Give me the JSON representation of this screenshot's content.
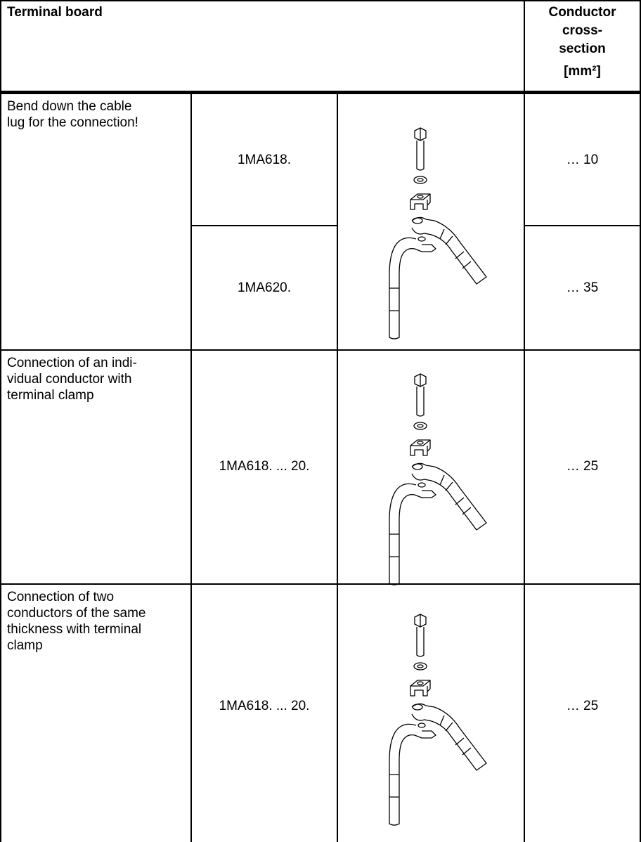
{
  "header": {
    "title": "Terminal board",
    "conductor_lines": [
      "Conductor",
      "cross-",
      "section"
    ],
    "unit": "[mm²]"
  },
  "rows": [
    {
      "description_lines": [
        "Bend down the cable",
        "lug for the connection!"
      ],
      "variants": [
        {
          "type": "1MA618.",
          "cross_section": "… 10"
        },
        {
          "type": "1MA620.",
          "cross_section": "… 35"
        }
      ]
    },
    {
      "description_lines": [
        "Connection of an indi-",
        "vidual conductor with",
        "terminal clamp"
      ],
      "variants": [
        {
          "type": "1MA618. ... 20.",
          "cross_section": "… 25"
        }
      ]
    },
    {
      "description_lines": [
        "Connection of two",
        "conductors of the same",
        "thickness with terminal",
        "clamp"
      ],
      "variants": [
        {
          "type": "1MA618. ... 20.",
          "cross_section": "… 25"
        }
      ]
    }
  ]
}
